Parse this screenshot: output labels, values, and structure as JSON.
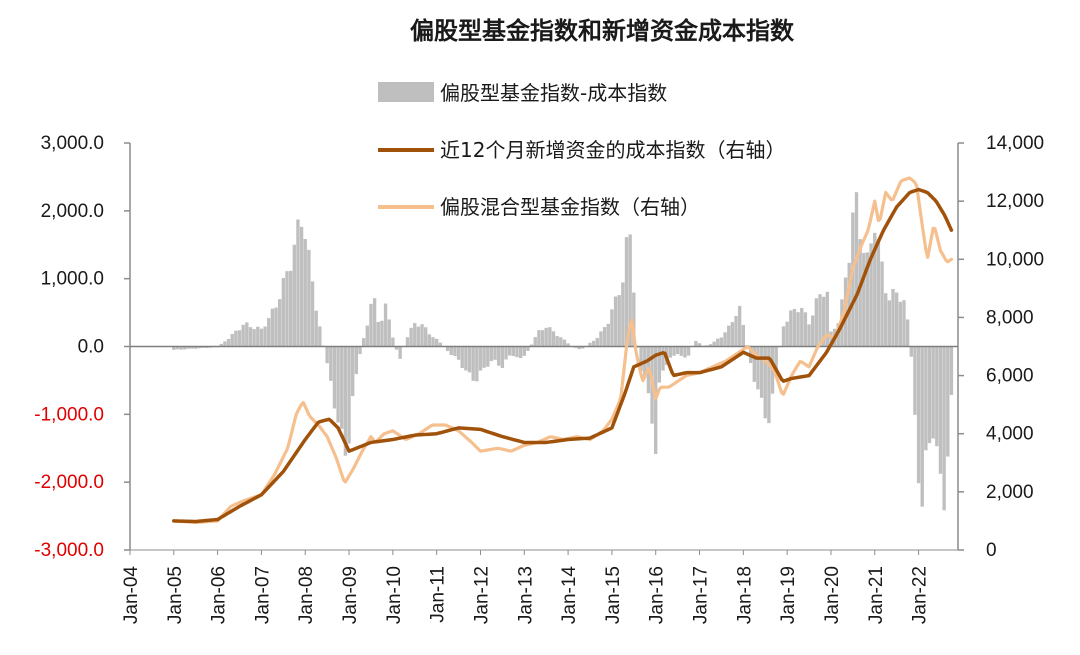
{
  "chart_data": {
    "type": "bar+line",
    "title": "偏股型基金指数和新增资金成本指数",
    "legend": {
      "placement": "top-center",
      "entries": [
        {
          "key": "diff",
          "label": "偏股型基金指数-成本指数",
          "color": "#bfbfbf",
          "kind": "bar"
        },
        {
          "key": "cost",
          "label": "近12个月新增资金的成本指数（右轴）",
          "color": "#a0520a",
          "kind": "line"
        },
        {
          "key": "fund",
          "label": "偏股混合型基金指数（右轴）",
          "color": "#f5bf8e",
          "kind": "line"
        }
      ]
    },
    "left_axis": {
      "range": [
        -3000,
        3000
      ],
      "ticks": [
        3000,
        2000,
        1000,
        0,
        -1000,
        -2000,
        -3000
      ],
      "tick_labels": [
        "3,000.0",
        "2,000.0",
        "1,000.0",
        "0.0",
        "-1,000.0",
        "-2,000.0",
        "-3,000.0"
      ],
      "negative_color": "#e00000"
    },
    "right_axis": {
      "range": [
        0,
        14000
      ],
      "ticks": [
        14000,
        12000,
        10000,
        8000,
        6000,
        4000,
        2000,
        0
      ],
      "tick_labels": [
        "14,000",
        "12,000",
        "10,000",
        "8,000",
        "6,000",
        "4,000",
        "2,000",
        "0"
      ]
    },
    "x_axis": {
      "range_years": [
        2004.0,
        2022.9
      ],
      "tick_labels": [
        "Jan-04",
        "Jan-05",
        "Jan-06",
        "Jan-07",
        "Jan-08",
        "Jan-09",
        "Jan-10",
        "Jan-11",
        "Jan-12",
        "Jan-13",
        "Jan-14",
        "Jan-15",
        "Jan-16",
        "Jan-17",
        "Jan-18",
        "Jan-19",
        "Jan-20",
        "Jan-21",
        "Jan-22"
      ]
    },
    "series": [
      {
        "name": "偏股型基金指数-成本指数",
        "axis": "left",
        "kind": "bar",
        "knots": [
          [
            2005.0,
            -50
          ],
          [
            2005.5,
            -30
          ],
          [
            2006.0,
            -10
          ],
          [
            2006.3,
            150
          ],
          [
            2006.6,
            330
          ],
          [
            2007.0,
            250
          ],
          [
            2007.3,
            550
          ],
          [
            2007.6,
            1100
          ],
          [
            2007.8,
            1600
          ],
          [
            2007.95,
            1980
          ],
          [
            2008.1,
            1200
          ],
          [
            2008.3,
            400
          ],
          [
            2008.45,
            -100
          ],
          [
            2008.6,
            -600
          ],
          [
            2008.75,
            -1100
          ],
          [
            2008.9,
            -1600
          ],
          [
            2009.0,
            -1300
          ],
          [
            2009.1,
            -700
          ],
          [
            2009.25,
            -100
          ],
          [
            2009.4,
            300
          ],
          [
            2009.55,
            750
          ],
          [
            2009.7,
            300
          ],
          [
            2009.85,
            600
          ],
          [
            2010.0,
            150
          ],
          [
            2010.15,
            -200
          ],
          [
            2010.3,
            100
          ],
          [
            2010.5,
            350
          ],
          [
            2010.7,
            300
          ],
          [
            2010.9,
            150
          ],
          [
            2011.1,
            50
          ],
          [
            2011.3,
            -100
          ],
          [
            2011.5,
            -200
          ],
          [
            2011.7,
            -400
          ],
          [
            2011.9,
            -500
          ],
          [
            2012.1,
            -300
          ],
          [
            2012.3,
            -200
          ],
          [
            2012.5,
            -300
          ],
          [
            2012.7,
            -100
          ],
          [
            2012.9,
            -200
          ],
          [
            2013.1,
            -50
          ],
          [
            2013.3,
            200
          ],
          [
            2013.5,
            300
          ],
          [
            2013.7,
            200
          ],
          [
            2013.9,
            100
          ],
          [
            2014.1,
            0
          ],
          [
            2014.3,
            -50
          ],
          [
            2014.5,
            50
          ],
          [
            2014.7,
            150
          ],
          [
            2014.9,
            350
          ],
          [
            2015.1,
            700
          ],
          [
            2015.25,
            1000
          ],
          [
            2015.4,
            1800
          ],
          [
            2015.5,
            900
          ],
          [
            2015.6,
            -200
          ],
          [
            2015.75,
            -500
          ],
          [
            2015.9,
            -900
          ],
          [
            2016.0,
            -1600
          ],
          [
            2016.1,
            -400
          ],
          [
            2016.3,
            -200
          ],
          [
            2016.5,
            -100
          ],
          [
            2016.7,
            -200
          ],
          [
            2016.9,
            100
          ],
          [
            2017.1,
            0
          ],
          [
            2017.3,
            50
          ],
          [
            2017.5,
            150
          ],
          [
            2017.7,
            300
          ],
          [
            2017.9,
            600
          ],
          [
            2018.0,
            300
          ],
          [
            2018.15,
            -200
          ],
          [
            2018.3,
            -600
          ],
          [
            2018.45,
            -900
          ],
          [
            2018.6,
            -1100
          ],
          [
            2018.75,
            -400
          ],
          [
            2018.9,
            300
          ],
          [
            2019.1,
            500
          ],
          [
            2019.3,
            600
          ],
          [
            2019.5,
            350
          ],
          [
            2019.7,
            700
          ],
          [
            2019.9,
            900
          ],
          [
            2020.0,
            200
          ],
          [
            2020.2,
            400
          ],
          [
            2020.4,
            1300
          ],
          [
            2020.55,
            2200
          ],
          [
            2020.7,
            1600
          ],
          [
            2020.85,
            1200
          ],
          [
            2021.0,
            1900
          ],
          [
            2021.15,
            1200
          ],
          [
            2021.3,
            700
          ],
          [
            2021.5,
            800
          ],
          [
            2021.65,
            700
          ],
          [
            2021.8,
            200
          ],
          [
            2021.9,
            -900
          ],
          [
            2022.0,
            -1800
          ],
          [
            2022.05,
            -2700
          ],
          [
            2022.15,
            -1800
          ],
          [
            2022.3,
            -1100
          ],
          [
            2022.45,
            -1800
          ],
          [
            2022.6,
            -2200
          ],
          [
            2022.7,
            -1400
          ],
          [
            2022.8,
            -200
          ]
        ]
      },
      {
        "name": "近12个月新增资金的成本指数（右轴）",
        "axis": "right",
        "kind": "line",
        "knots": [
          [
            2005.0,
            1000
          ],
          [
            2005.5,
            980
          ],
          [
            2006.0,
            1050
          ],
          [
            2006.5,
            1500
          ],
          [
            2007.0,
            1900
          ],
          [
            2007.5,
            2700
          ],
          [
            2008.0,
            3800
          ],
          [
            2008.3,
            4400
          ],
          [
            2008.55,
            4500
          ],
          [
            2008.75,
            4200
          ],
          [
            2009.0,
            3400
          ],
          [
            2009.5,
            3700
          ],
          [
            2010.0,
            3800
          ],
          [
            2010.5,
            3950
          ],
          [
            2011.0,
            4000
          ],
          [
            2011.5,
            4200
          ],
          [
            2012.0,
            4150
          ],
          [
            2012.5,
            3900
          ],
          [
            2013.0,
            3700
          ],
          [
            2013.5,
            3700
          ],
          [
            2014.0,
            3800
          ],
          [
            2014.5,
            3850
          ],
          [
            2015.0,
            4200
          ],
          [
            2015.3,
            5400
          ],
          [
            2015.5,
            6300
          ],
          [
            2015.8,
            6500
          ],
          [
            2016.0,
            6700
          ],
          [
            2016.2,
            6800
          ],
          [
            2016.4,
            6000
          ],
          [
            2016.7,
            6100
          ],
          [
            2017.0,
            6100
          ],
          [
            2017.5,
            6300
          ],
          [
            2018.0,
            6800
          ],
          [
            2018.3,
            6600
          ],
          [
            2018.6,
            6600
          ],
          [
            2018.9,
            5800
          ],
          [
            2019.1,
            5900
          ],
          [
            2019.5,
            6000
          ],
          [
            2019.9,
            6800
          ],
          [
            2020.2,
            7600
          ],
          [
            2020.6,
            8800
          ],
          [
            2020.9,
            10000
          ],
          [
            2021.2,
            11000
          ],
          [
            2021.5,
            11800
          ],
          [
            2021.8,
            12300
          ],
          [
            2022.0,
            12400
          ],
          [
            2022.2,
            12300
          ],
          [
            2022.4,
            12000
          ],
          [
            2022.6,
            11500
          ],
          [
            2022.75,
            11000
          ]
        ]
      },
      {
        "name": "偏股混合型基金指数（右轴）",
        "axis": "right",
        "kind": "line",
        "knots": [
          [
            2005.0,
            1000
          ],
          [
            2005.5,
            950
          ],
          [
            2006.0,
            1000
          ],
          [
            2006.3,
            1500
          ],
          [
            2006.6,
            1700
          ],
          [
            2007.0,
            1900
          ],
          [
            2007.3,
            2600
          ],
          [
            2007.6,
            3500
          ],
          [
            2007.8,
            4700
          ],
          [
            2007.95,
            5100
          ],
          [
            2008.1,
            4600
          ],
          [
            2008.3,
            4300
          ],
          [
            2008.5,
            3900
          ],
          [
            2008.7,
            3200
          ],
          [
            2008.9,
            2300
          ],
          [
            2009.1,
            2800
          ],
          [
            2009.3,
            3400
          ],
          [
            2009.5,
            3900
          ],
          [
            2009.6,
            3700
          ],
          [
            2009.8,
            4000
          ],
          [
            2010.0,
            4100
          ],
          [
            2010.3,
            3800
          ],
          [
            2010.6,
            4000
          ],
          [
            2010.9,
            4300
          ],
          [
            2011.2,
            4300
          ],
          [
            2011.5,
            4100
          ],
          [
            2011.8,
            3700
          ],
          [
            2012.0,
            3400
          ],
          [
            2012.4,
            3500
          ],
          [
            2012.7,
            3400
          ],
          [
            2013.0,
            3600
          ],
          [
            2013.3,
            3700
          ],
          [
            2013.6,
            3900
          ],
          [
            2013.9,
            3800
          ],
          [
            2014.2,
            3900
          ],
          [
            2014.5,
            3800
          ],
          [
            2014.8,
            4100
          ],
          [
            2015.0,
            4500
          ],
          [
            2015.2,
            5200
          ],
          [
            2015.35,
            7200
          ],
          [
            2015.45,
            8000
          ],
          [
            2015.55,
            6800
          ],
          [
            2015.7,
            5800
          ],
          [
            2015.85,
            6300
          ],
          [
            2016.0,
            5200
          ],
          [
            2016.1,
            5600
          ],
          [
            2016.3,
            5600
          ],
          [
            2016.5,
            5800
          ],
          [
            2016.7,
            6000
          ],
          [
            2017.0,
            6100
          ],
          [
            2017.3,
            6300
          ],
          [
            2017.6,
            6500
          ],
          [
            2017.9,
            6800
          ],
          [
            2018.1,
            7000
          ],
          [
            2018.3,
            6700
          ],
          [
            2018.5,
            6500
          ],
          [
            2018.7,
            6200
          ],
          [
            2018.9,
            5300
          ],
          [
            2019.1,
            6000
          ],
          [
            2019.3,
            6500
          ],
          [
            2019.5,
            6300
          ],
          [
            2019.7,
            7000
          ],
          [
            2019.9,
            7400
          ],
          [
            2020.1,
            7300
          ],
          [
            2020.3,
            8200
          ],
          [
            2020.5,
            9700
          ],
          [
            2020.7,
            10500
          ],
          [
            2020.85,
            11000
          ],
          [
            2021.0,
            12000
          ],
          [
            2021.1,
            11200
          ],
          [
            2021.25,
            12300
          ],
          [
            2021.4,
            12000
          ],
          [
            2021.6,
            12700
          ],
          [
            2021.8,
            12800
          ],
          [
            2021.95,
            12600
          ],
          [
            2022.1,
            11000
          ],
          [
            2022.2,
            10000
          ],
          [
            2022.35,
            11200
          ],
          [
            2022.5,
            10300
          ],
          [
            2022.65,
            9900
          ],
          [
            2022.75,
            10000
          ]
        ]
      }
    ]
  }
}
